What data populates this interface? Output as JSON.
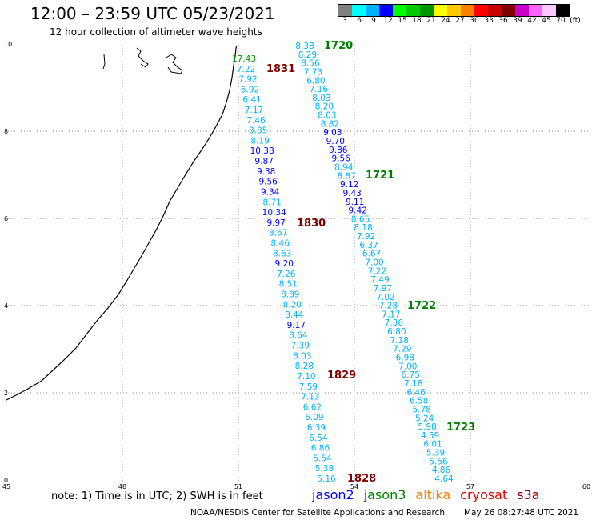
{
  "header": {
    "title": "12:00 – 23:59 UTC 05/23/2021",
    "subtitle": "12 hour collection of altimeter wave heights"
  },
  "legend": {
    "unit": "(ft)",
    "colors": [
      "#808080",
      "#00ffff",
      "#00b4ff",
      "#0000ff",
      "#00ff00",
      "#00cc00",
      "#009600",
      "#ffff00",
      "#ffc800",
      "#ff8000",
      "#ff0000",
      "#c80000",
      "#800000",
      "#c800c8",
      "#ff64ff",
      "#ffc8ff",
      "#000000"
    ],
    "labels": [
      "3",
      "6",
      "9",
      "12",
      "15",
      "18",
      "21",
      "24",
      "27",
      "30",
      "33",
      "36",
      "39",
      "42",
      "45",
      "70"
    ]
  },
  "axes": {
    "x_ticks": [
      "45",
      "48",
      "51",
      "54",
      "57",
      "60"
    ],
    "y_ticks": [
      "0",
      "2",
      "4",
      "6",
      "8",
      "10"
    ]
  },
  "track_labels": [
    {
      "text": "1720",
      "color": "#008000"
    },
    {
      "text": "1831",
      "color": "#800000"
    },
    {
      "text": "1721",
      "color": "#008000"
    },
    {
      "text": "1830",
      "color": "#800000"
    },
    {
      "text": "1722",
      "color": "#008000"
    },
    {
      "text": "1829",
      "color": "#800000"
    },
    {
      "text": "1723",
      "color": "#008000"
    },
    {
      "text": "1828",
      "color": "#800000"
    }
  ],
  "tracks": [
    {
      "values": [
        "17.43",
        "7.22",
        "7.92",
        "6.92",
        "6.41",
        "7.17",
        "7.46",
        "8.85",
        "8.19",
        "10.38",
        "9.87",
        "9.38",
        "9.56",
        "9.34",
        "8.71",
        "10.34",
        "9.97",
        "8.67",
        "8.46",
        "8.63",
        "9.20",
        "7.26",
        "8.51",
        "8.89",
        "8.20",
        "8.44",
        "9.17",
        "8.64",
        "7.39",
        "8.03",
        "8.28",
        "7.10",
        "7.59",
        "7.13",
        "6.62",
        "6.09",
        "6.39",
        "6.54",
        "6.86",
        "5.54",
        "5.38",
        "5.16"
      ],
      "colors": [
        "#009600",
        "#00b4ff",
        "#00b4ff",
        "#00b4ff",
        "#00b4ff",
        "#00b4ff",
        "#00b4ff",
        "#00b4ff",
        "#00b4ff",
        "#0000ff",
        "#0000ff",
        "#0000ff",
        "#0000ff",
        "#0000ff",
        "#00b4ff",
        "#0000ff",
        "#0000ff",
        "#00b4ff",
        "#00b4ff",
        "#00b4ff",
        "#0000ff",
        "#00b4ff",
        "#00b4ff",
        "#00b4ff",
        "#00b4ff",
        "#00b4ff",
        "#0000ff",
        "#00b4ff",
        "#00b4ff",
        "#00b4ff",
        "#00b4ff",
        "#00b4ff",
        "#00b4ff",
        "#00b4ff",
        "#00b4ff",
        "#00b4ff",
        "#00b4ff",
        "#00b4ff",
        "#00b4ff",
        "#00b4ff",
        "#00b4ff",
        "#00b4ff"
      ]
    },
    {
      "values": [
        "8.38",
        "8.29",
        "8.56",
        "7.73",
        "6.80",
        "7.16",
        "8.03",
        "8.20",
        "8.03",
        "8.82",
        "9.03",
        "9.70",
        "9.86",
        "9.56",
        "8.94",
        "8.87",
        "9.12",
        "9.43",
        "9.11",
        "9.42",
        "8.65",
        "8.18",
        "7.92",
        "6.37",
        "6.67",
        "7.00",
        "7.22",
        "7.49",
        "7.97",
        "7.02",
        "7.28",
        "7.17",
        "7.36",
        "6.80",
        "7.18",
        "7.29",
        "6.98",
        "7.00",
        "6.75",
        "7.18",
        "6.46",
        "6.58",
        "5.78",
        "5.24",
        "5.98",
        "4.59",
        "6.01",
        "5.39",
        "5.56",
        "4.86",
        "4.64"
      ],
      "colors": [
        "#00b4ff",
        "#00b4ff",
        "#00b4ff",
        "#00b4ff",
        "#00b4ff",
        "#00b4ff",
        "#00b4ff",
        "#00b4ff",
        "#00b4ff",
        "#00b4ff",
        "#0000ff",
        "#0000ff",
        "#0000ff",
        "#0000ff",
        "#00b4ff",
        "#00b4ff",
        "#0000ff",
        "#0000ff",
        "#0000ff",
        "#0000ff",
        "#00b4ff",
        "#00b4ff",
        "#00b4ff",
        "#00b4ff",
        "#00b4ff",
        "#00b4ff",
        "#00b4ff",
        "#00b4ff",
        "#00b4ff",
        "#00b4ff",
        "#00b4ff",
        "#00b4ff",
        "#00b4ff",
        "#00b4ff",
        "#00b4ff",
        "#00b4ff",
        "#00b4ff",
        "#00b4ff",
        "#00b4ff",
        "#00b4ff",
        "#00b4ff",
        "#00b4ff",
        "#00b4ff",
        "#00b4ff",
        "#00b4ff",
        "#00b4ff",
        "#00b4ff",
        "#00b4ff",
        "#00b4ff",
        "#00b4ff",
        "#00b4ff"
      ]
    }
  ],
  "note": "note:  1) Time is in UTC;  2) SWH is in feet",
  "satellites": [
    {
      "name": "jason2",
      "color": "#0000ff"
    },
    {
      "name": "jason3",
      "color": "#008000"
    },
    {
      "name": "altika",
      "color": "#ff8000"
    },
    {
      "name": "cryosat",
      "color": "#e00000"
    },
    {
      "name": "s3a",
      "color": "#800000"
    }
  ],
  "footer": {
    "left": "NOAA/NESDIS Center for Satellite Applications and Research",
    "right": "May 26 08:27:48 UTC 2021"
  }
}
